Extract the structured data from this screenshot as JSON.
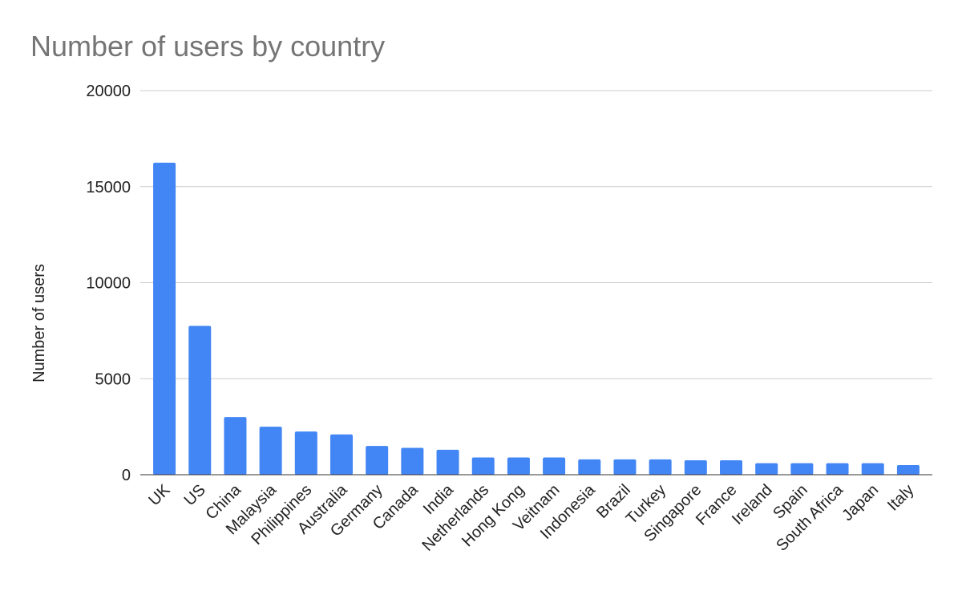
{
  "chart_data": {
    "type": "bar",
    "title": "Number of users by country",
    "y_label": "Number of users",
    "categories": [
      "UK",
      "US",
      "China",
      "Malaysia",
      "Philippines",
      "Australia",
      "Germany",
      "Canada",
      "India",
      "Netherlands",
      "Hong Kong",
      "Veitnam",
      "Indonesia",
      "Brazil",
      "Turkey",
      "Singapore",
      "France",
      "Ireland",
      "Spain",
      "South Africa",
      "Japan",
      "Italy"
    ],
    "values": [
      16250,
      7750,
      3000,
      2500,
      2250,
      2100,
      1500,
      1400,
      1300,
      900,
      900,
      900,
      800,
      800,
      800,
      750,
      750,
      600,
      600,
      600,
      600,
      500
    ],
    "color": "#4285f4",
    "ylim": [
      0,
      20000
    ],
    "yticks": [
      0,
      5000,
      10000,
      15000,
      20000
    ],
    "grid": true
  }
}
